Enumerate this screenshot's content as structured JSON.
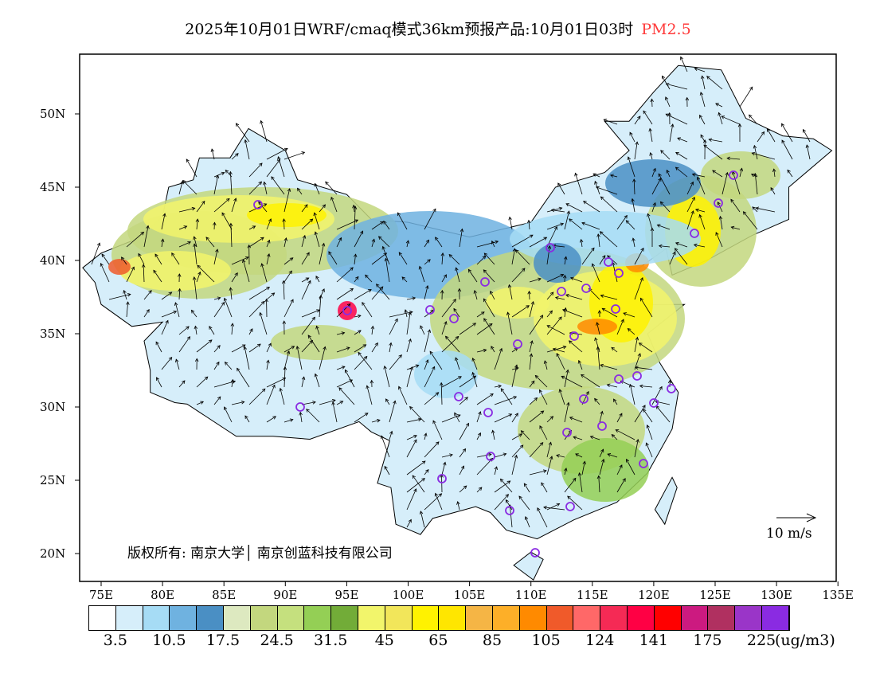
{
  "title": {
    "main": "2025年10月01日WRF/cmaq模式36km预报产品:10月01日03时",
    "pollutant": "PM2.5",
    "pollutant_color": "#ff3b3b"
  },
  "axes": {
    "lat_labels": [
      "50N",
      "45N",
      "40N",
      "35N",
      "30N",
      "25N",
      "20N"
    ],
    "lon_labels": [
      "75E",
      "80E",
      "85E",
      "90E",
      "95E",
      "100E",
      "105E",
      "110E",
      "115E",
      "120E",
      "125E",
      "130E",
      "135E"
    ]
  },
  "colorbar": {
    "colors": [
      "#ffffff",
      "#d6eefa",
      "#a6dcf5",
      "#6fb2e0",
      "#4a8fc4",
      "#dde9c0",
      "#c3d77e",
      "#c5e07e",
      "#94cf55",
      "#72ac38",
      "#f2f56b",
      "#f2e65a",
      "#fff200",
      "#ffe600",
      "#f5b545",
      "#fdaf28",
      "#ff8a00",
      "#f05a2a",
      "#ff6868",
      "#f52a55",
      "#ff0044",
      "#ff0000",
      "#cc1a80",
      "#b03060",
      "#9a35c8",
      "#8a2be2"
    ],
    "labels": [
      "3.5",
      "10.5",
      "17.5",
      "24.5",
      "31.5",
      "45",
      "65",
      "85",
      "105",
      "124",
      "141",
      "175",
      "225"
    ],
    "unit": "(ug/m3)"
  },
  "wind_reference": "10 m/s",
  "copyright": "版权所有: 南京大学│ 南京创蓝科技有限公司"
}
